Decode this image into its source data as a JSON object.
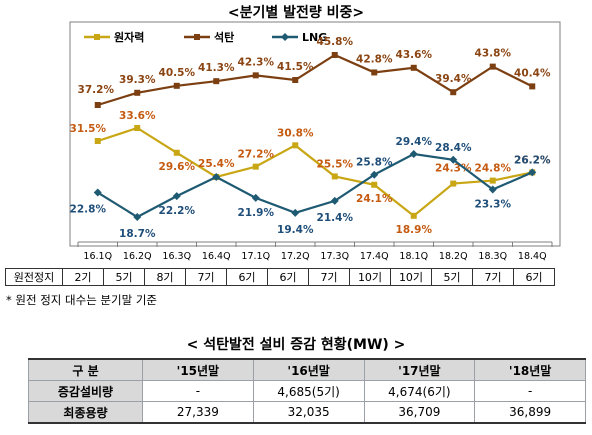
{
  "chart_data": {
    "type": "line",
    "title": "<분기별 발전량 비중>",
    "categories": [
      "16.1Q",
      "16.2Q",
      "16.3Q",
      "16.4Q",
      "17.1Q",
      "17.2Q",
      "17.3Q",
      "17.4Q",
      "18.1Q",
      "18.2Q",
      "18.3Q",
      "18.4Q"
    ],
    "series": [
      {
        "name": "원자력",
        "color": "#c8a614",
        "label_color": "#c55a11",
        "marker": "square",
        "values": [
          31.5,
          33.6,
          29.6,
          25.4,
          27.2,
          30.8,
          25.5,
          24.1,
          18.9,
          24.3,
          24.8,
          26.2
        ],
        "labels": [
          "31.5%",
          "33.6%",
          "29.6%",
          "25.4%",
          "27.2%",
          "30.8%",
          "25.5%",
          "24.1%",
          "18.9%",
          "24.3%",
          "24.8%",
          "26.2%"
        ]
      },
      {
        "name": "석탄",
        "color": "#7b3f12",
        "label_color": "#8b4513",
        "marker": "square",
        "values": [
          37.2,
          39.3,
          40.5,
          41.3,
          42.3,
          41.5,
          45.8,
          42.8,
          43.6,
          39.4,
          43.8,
          40.4
        ],
        "labels": [
          "37.2%",
          "39.3%",
          "40.5%",
          "41.3%",
          "42.3%",
          "41.5%",
          "45.8%",
          "42.8%",
          "43.6%",
          "39.4%",
          "43.8%",
          "40.4%"
        ]
      },
      {
        "name": "LNG",
        "color": "#1f5a73",
        "label_color": "#1f4e79",
        "marker": "diamond",
        "values": [
          22.8,
          18.7,
          22.2,
          25.4,
          21.9,
          19.4,
          21.4,
          25.8,
          29.4,
          28.4,
          23.3,
          26.2
        ],
        "labels": [
          "22.8%",
          "18.7%",
          "22.2%",
          "",
          "21.9%",
          "19.4%",
          "21.4%",
          "25.8%",
          "29.4%",
          "28.4%",
          "23.3%",
          "26.2%"
        ]
      }
    ],
    "legend_position": "top-left",
    "grid": false
  },
  "stops": {
    "header": "원전정지",
    "values": [
      "2기",
      "5기",
      "8기",
      "7기",
      "6기",
      "6기",
      "7기",
      "10기",
      "10기",
      "5기",
      "7기",
      "6기"
    ]
  },
  "note": "* 원전 정지 대수는 분기말 기준",
  "capacity_table": {
    "title": "< 석탄발전 설비 증감 현황(MW) >",
    "columns": [
      "구 분",
      "'15년말",
      "'16년말",
      "'17년말",
      "'18년말"
    ],
    "rows": [
      {
        "label": "증감설비량",
        "cells": [
          "-",
          "4,685(5기)",
          "4,674(6기)",
          "-"
        ]
      },
      {
        "label": "최종용량",
        "cells": [
          "27,339",
          "32,035",
          "36,709",
          "36,899"
        ]
      }
    ]
  }
}
